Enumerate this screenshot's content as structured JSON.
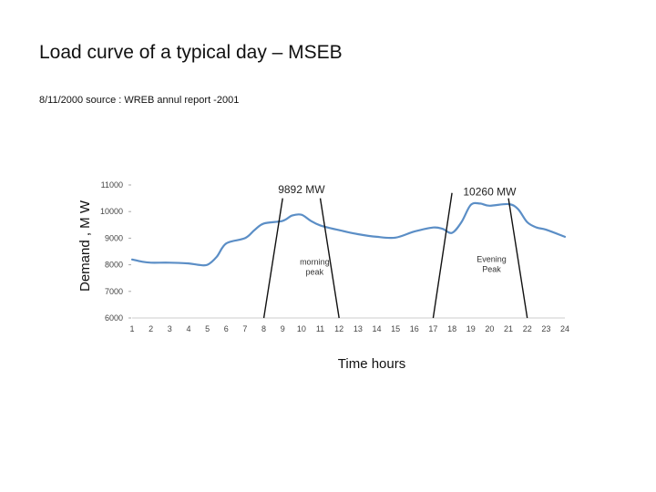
{
  "slide": {
    "title": "Load curve of a typical day – MSEB",
    "subtitle": "8/11/2000 source : WREB annul report -2001"
  },
  "chart_data": {
    "type": "line",
    "title": "",
    "xlabel": "Time hours",
    "ylabel": "Demand , M W",
    "xlim": [
      1,
      24
    ],
    "ylim": [
      6000,
      11000
    ],
    "x_ticks": [
      1,
      2,
      3,
      4,
      5,
      6,
      7,
      8,
      9,
      10,
      11,
      12,
      13,
      14,
      15,
      16,
      17,
      18,
      19,
      20,
      21,
      22,
      23,
      24
    ],
    "y_ticks": [
      6000,
      7000,
      8000,
      9000,
      10000,
      11000
    ],
    "grid": false,
    "line_color": "#5b8ec6",
    "series": [
      {
        "x": [
          1,
          1.5,
          2,
          3,
          4,
          4.5,
          5,
          5.5,
          6,
          7,
          7.5,
          8,
          9,
          9.5,
          10,
          10.5,
          11,
          12,
          13,
          14,
          15,
          16,
          17,
          17.5,
          18,
          18.5,
          19,
          19.5,
          20,
          21,
          21.5,
          22,
          22.5,
          23,
          24
        ],
        "values": [
          8200,
          8120,
          8080,
          8080,
          8050,
          8000,
          8000,
          8300,
          8800,
          9000,
          9300,
          9550,
          9650,
          9850,
          9880,
          9650,
          9480,
          9300,
          9150,
          9050,
          9020,
          9250,
          9400,
          9350,
          9200,
          9600,
          10250,
          10300,
          10220,
          10280,
          10100,
          9600,
          9400,
          9320,
          9050
        ]
      }
    ],
    "annotations": [
      {
        "text": "9892 MW",
        "x": 10,
        "y": 10700
      },
      {
        "text": "10260 MW",
        "x": 20,
        "y": 10600
      },
      {
        "text_lines": [
          "morning",
          "peak"
        ],
        "x": 10.7,
        "y": 8000
      },
      {
        "text_lines": [
          "Evening",
          "Peak"
        ],
        "x": 20.1,
        "y": 8100
      }
    ],
    "peak_bands": [
      {
        "from": [
          8,
          6000
        ],
        "to": [
          9,
          10500
        ]
      },
      {
        "from": [
          11,
          10500
        ],
        "to": [
          12,
          6000
        ]
      },
      {
        "from": [
          17,
          6000
        ],
        "to": [
          18,
          10700
        ]
      },
      {
        "from": [
          21,
          10500
        ],
        "to": [
          22,
          6000
        ]
      }
    ]
  }
}
